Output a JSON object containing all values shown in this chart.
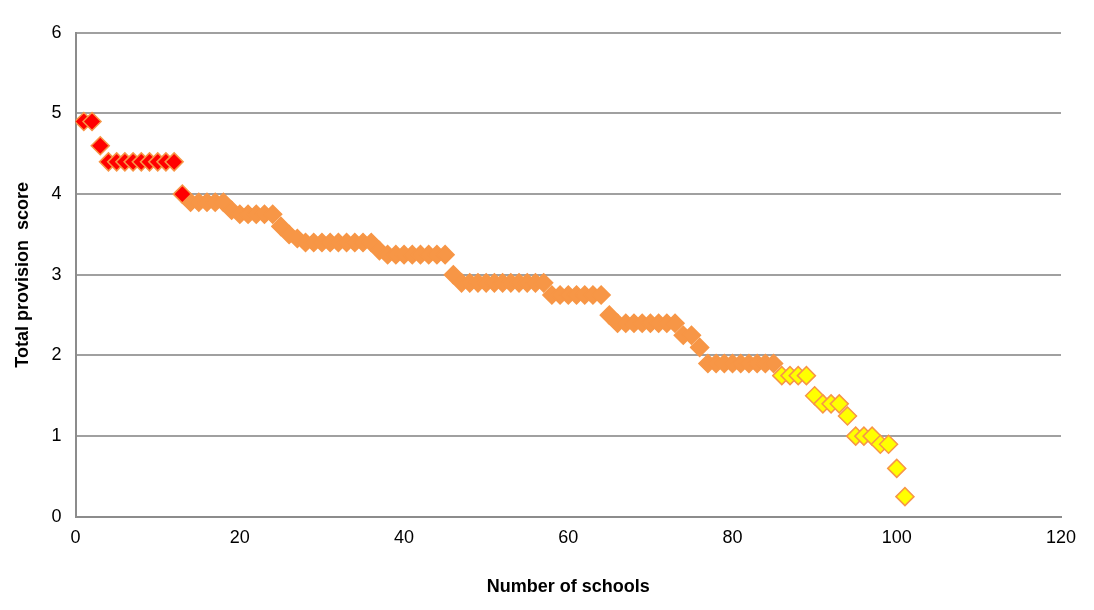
{
  "chart_data": {
    "type": "scatter",
    "xlabel": "Number of schools",
    "ylabel": "Total provision  score",
    "xlim": [
      0,
      120
    ],
    "xticks": [
      0,
      20,
      40,
      60,
      80,
      100,
      120
    ],
    "ylim": [
      0,
      6
    ],
    "yticks": [
      0,
      1,
      2,
      3,
      4,
      5,
      6
    ],
    "grid": "y",
    "legend": false,
    "marker": "diamond",
    "series": [
      {
        "color": "#ff0000",
        "x": [
          1,
          2,
          3,
          4,
          5,
          6,
          7,
          8,
          9,
          10,
          11,
          12,
          13
        ],
        "values": [
          4.9,
          4.9,
          4.6,
          4.4,
          4.4,
          4.4,
          4.4,
          4.4,
          4.4,
          4.4,
          4.4,
          4.4,
          4.0
        ]
      },
      {
        "color": "#f79646",
        "x": [
          14,
          15,
          16,
          17,
          18,
          19,
          20,
          21,
          22,
          23,
          24,
          25,
          26,
          27,
          28,
          29,
          30,
          31,
          32,
          33,
          34,
          35,
          36,
          37,
          38,
          39,
          40,
          41,
          42,
          43,
          44,
          45,
          46,
          47,
          48,
          49,
          50,
          51,
          52,
          53,
          54,
          55,
          56,
          57,
          58,
          59,
          60,
          61,
          62,
          63,
          64,
          65,
          66,
          67,
          68,
          69,
          70,
          71,
          72,
          73,
          74,
          75,
          76,
          77,
          78,
          79,
          80,
          81,
          82,
          83,
          84,
          85
        ],
        "values": [
          3.9,
          3.9,
          3.9,
          3.9,
          3.9,
          3.8,
          3.75,
          3.75,
          3.75,
          3.75,
          3.75,
          3.6,
          3.5,
          3.45,
          3.4,
          3.4,
          3.4,
          3.4,
          3.4,
          3.4,
          3.4,
          3.4,
          3.4,
          3.3,
          3.25,
          3.25,
          3.25,
          3.25,
          3.25,
          3.25,
          3.25,
          3.25,
          3.0,
          2.9,
          2.9,
          2.9,
          2.9,
          2.9,
          2.9,
          2.9,
          2.9,
          2.9,
          2.9,
          2.9,
          2.75,
          2.75,
          2.75,
          2.75,
          2.75,
          2.75,
          2.75,
          2.5,
          2.4,
          2.4,
          2.4,
          2.4,
          2.4,
          2.4,
          2.4,
          2.4,
          2.25,
          2.25,
          2.1,
          1.9,
          1.9,
          1.9,
          1.9,
          1.9,
          1.9,
          1.9,
          1.9,
          1.9
        ]
      },
      {
        "color": "#ffff00",
        "x": [
          86,
          87,
          88,
          89,
          90,
          91,
          92,
          93,
          94,
          95,
          96,
          97,
          98,
          99,
          100,
          101
        ],
        "values": [
          1.75,
          1.75,
          1.75,
          1.75,
          1.5,
          1.4,
          1.4,
          1.4,
          1.25,
          1.0,
          1.0,
          1.0,
          0.9,
          0.9,
          0.6,
          0.25
        ]
      }
    ]
  }
}
